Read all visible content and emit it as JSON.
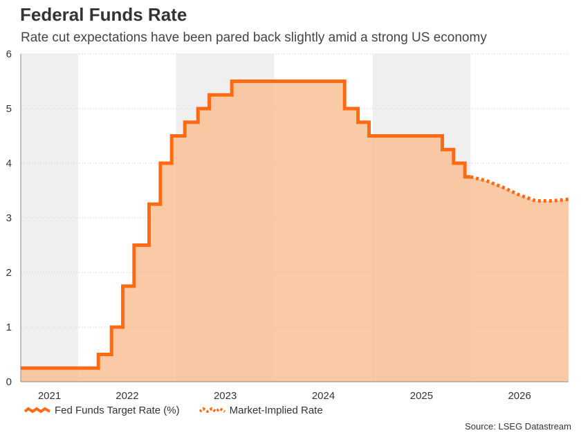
{
  "title": "Federal Funds Rate",
  "subtitle": "Rate cut expectations have been pared back slightly amid a strong US economy",
  "source": "Source: LSEG Datastream",
  "colors": {
    "line": "#ff6a13",
    "fill": "#f9bf95",
    "shade": "#efefef",
    "axis": "#888888"
  },
  "chart_data": {
    "type": "line",
    "title": "Federal Funds Rate",
    "subtitle": "Rate cut expectations have been pared back slightly amid a strong US economy",
    "x_ticks": [
      "2021",
      "2022",
      "2023",
      "2024",
      "2025",
      "2026"
    ],
    "y_ticks": [
      0,
      1,
      2,
      3,
      4,
      5,
      6
    ],
    "ylim": [
      0,
      6
    ],
    "xlim": [
      "2021-06-01",
      "2027-01-01"
    ],
    "grid": true,
    "legend": "bottom-left",
    "series": [
      {
        "name": "Fed Funds Target Rate (%)",
        "style": "solid-step-area",
        "points": [
          [
            "2021-06-01",
            0.25
          ],
          [
            "2022-03-17",
            0.5
          ],
          [
            "2022-05-05",
            1.0
          ],
          [
            "2022-06-16",
            1.75
          ],
          [
            "2022-07-28",
            2.5
          ],
          [
            "2022-09-22",
            3.25
          ],
          [
            "2022-11-03",
            4.0
          ],
          [
            "2022-12-15",
            4.5
          ],
          [
            "2023-02-02",
            4.75
          ],
          [
            "2023-03-23",
            5.0
          ],
          [
            "2023-05-04",
            5.25
          ],
          [
            "2023-07-27",
            5.5
          ],
          [
            "2024-09-19",
            5.0
          ],
          [
            "2024-11-08",
            4.75
          ],
          [
            "2024-12-19",
            4.5
          ],
          [
            "2025-09-18",
            4.25
          ],
          [
            "2025-10-30",
            4.0
          ],
          [
            "2025-12-11",
            3.75
          ],
          [
            "2026-01-01",
            3.75
          ]
        ]
      },
      {
        "name": "Market-Implied Rate",
        "style": "dotted-area",
        "points": [
          [
            "2026-01-01",
            3.75
          ],
          [
            "2026-03-01",
            3.68
          ],
          [
            "2026-05-01",
            3.56
          ],
          [
            "2026-07-01",
            3.42
          ],
          [
            "2026-09-01",
            3.31
          ],
          [
            "2026-11-01",
            3.31
          ],
          [
            "2027-01-01",
            3.34
          ]
        ]
      }
    ]
  }
}
